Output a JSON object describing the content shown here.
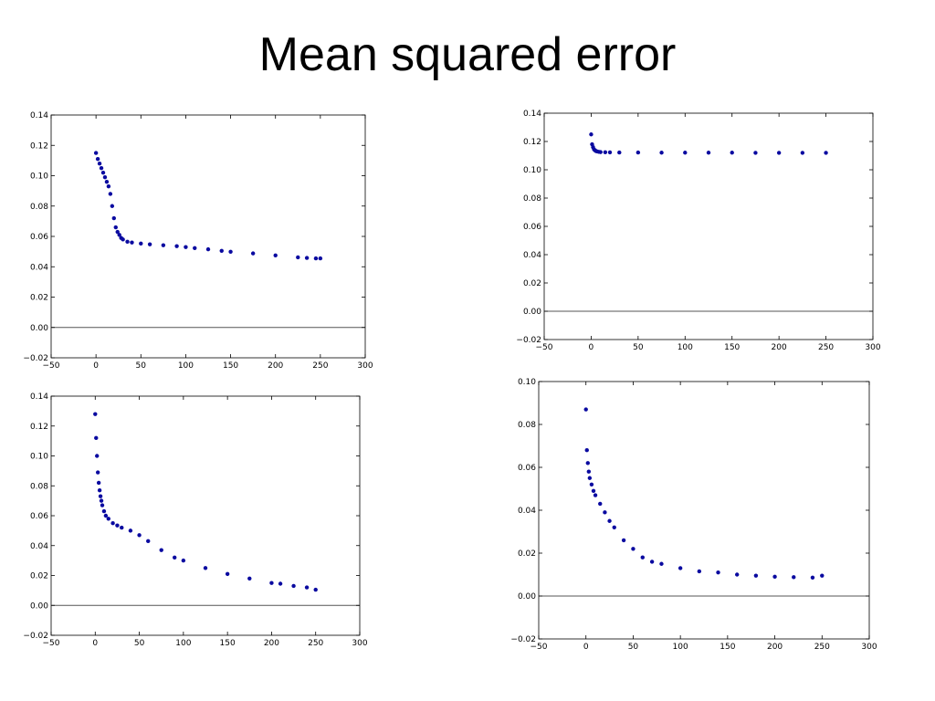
{
  "slide": {
    "title": "Mean squared error"
  },
  "colors": {
    "points": "#0a0aa0",
    "zero_line": "#555555",
    "frame": "#000000",
    "background": "#ffffff"
  },
  "chart_data": [
    {
      "type": "scatter",
      "title": "",
      "xlabel": "",
      "ylabel": "",
      "xlim": [
        -50,
        300
      ],
      "ylim": [
        -0.02,
        0.14
      ],
      "xticks": [
        -50,
        0,
        50,
        100,
        150,
        200,
        250,
        300
      ],
      "yticks": [
        -0.02,
        0.0,
        0.02,
        0.04,
        0.06,
        0.08,
        0.1,
        0.12,
        0.14
      ],
      "xtick_labels": [
        "−50",
        "0",
        "50",
        "100",
        "150",
        "200",
        "250",
        "300"
      ],
      "ytick_labels": [
        "−0.02",
        "0.00",
        "0.02",
        "0.04",
        "0.06",
        "0.08",
        "0.10",
        "0.12",
        "0.14"
      ],
      "grid": false,
      "zero_line": true,
      "series": [
        {
          "x": [
            0,
            2,
            4,
            6,
            8,
            10,
            12,
            14,
            16,
            18,
            20,
            22,
            24,
            26,
            28,
            30,
            35,
            40,
            50,
            60,
            75,
            90,
            100,
            110,
            125,
            140,
            150,
            175,
            200,
            225,
            235,
            245,
            250
          ],
          "y": [
            0.115,
            0.111,
            0.108,
            0.105,
            0.102,
            0.099,
            0.096,
            0.093,
            0.088,
            0.08,
            0.072,
            0.066,
            0.063,
            0.061,
            0.059,
            0.058,
            0.0565,
            0.056,
            0.0553,
            0.0548,
            0.0542,
            0.0536,
            0.053,
            0.0523,
            0.0515,
            0.0505,
            0.0499,
            0.0488,
            0.0475,
            0.0462,
            0.0458,
            0.0455,
            0.0455
          ]
        }
      ]
    },
    {
      "type": "scatter",
      "title": "",
      "xlabel": "",
      "ylabel": "",
      "xlim": [
        -50,
        300
      ],
      "ylim": [
        -0.02,
        0.14
      ],
      "xticks": [
        -50,
        0,
        50,
        100,
        150,
        200,
        250,
        300
      ],
      "yticks": [
        -0.02,
        0.0,
        0.02,
        0.04,
        0.06,
        0.08,
        0.1,
        0.12,
        0.14
      ],
      "xtick_labels": [
        "−50",
        "0",
        "50",
        "100",
        "150",
        "200",
        "250",
        "300"
      ],
      "ytick_labels": [
        "−0.02",
        "0.00",
        "0.02",
        "0.04",
        "0.06",
        "0.08",
        "0.10",
        "0.12",
        "0.14"
      ],
      "grid": false,
      "zero_line": true,
      "series": [
        {
          "x": [
            0,
            1,
            2,
            3,
            4,
            5,
            6,
            8,
            10,
            15,
            20,
            30,
            50,
            75,
            100,
            125,
            150,
            175,
            200,
            225,
            250
          ],
          "y": [
            0.125,
            0.118,
            0.116,
            0.1145,
            0.1138,
            0.1133,
            0.113,
            0.1127,
            0.1125,
            0.1124,
            0.1123,
            0.1122,
            0.1122,
            0.1121,
            0.1121,
            0.1121,
            0.1121,
            0.112,
            0.112,
            0.112,
            0.112
          ]
        }
      ]
    },
    {
      "type": "scatter",
      "title": "",
      "xlabel": "",
      "ylabel": "",
      "xlim": [
        -50,
        300
      ],
      "ylim": [
        -0.02,
        0.14
      ],
      "xticks": [
        -50,
        0,
        50,
        100,
        150,
        200,
        250,
        300
      ],
      "yticks": [
        -0.02,
        0.0,
        0.02,
        0.04,
        0.06,
        0.08,
        0.1,
        0.12,
        0.14
      ],
      "xtick_labels": [
        "−50",
        "0",
        "50",
        "100",
        "150",
        "200",
        "250",
        "300"
      ],
      "ytick_labels": [
        "−0.02",
        "0.00",
        "0.02",
        "0.04",
        "0.06",
        "0.08",
        "0.10",
        "0.12",
        "0.14"
      ],
      "grid": false,
      "zero_line": true,
      "series": [
        {
          "x": [
            0,
            1,
            2,
            3,
            4,
            5,
            6,
            7,
            8,
            10,
            12,
            15,
            20,
            25,
            30,
            40,
            50,
            60,
            75,
            90,
            100,
            125,
            150,
            175,
            200,
            210,
            225,
            240,
            250
          ],
          "y": [
            0.128,
            0.112,
            0.1,
            0.089,
            0.082,
            0.077,
            0.073,
            0.07,
            0.067,
            0.063,
            0.06,
            0.058,
            0.055,
            0.0535,
            0.052,
            0.05,
            0.047,
            0.043,
            0.037,
            0.032,
            0.03,
            0.025,
            0.021,
            0.018,
            0.015,
            0.0145,
            0.013,
            0.012,
            0.0105
          ]
        }
      ]
    },
    {
      "type": "scatter",
      "title": "",
      "xlabel": "",
      "ylabel": "",
      "xlim": [
        -50,
        300
      ],
      "ylim": [
        -0.02,
        0.1
      ],
      "xticks": [
        -50,
        0,
        50,
        100,
        150,
        200,
        250,
        300
      ],
      "yticks": [
        -0.02,
        0.0,
        0.02,
        0.04,
        0.06,
        0.08,
        0.1
      ],
      "xtick_labels": [
        "−50",
        "0",
        "50",
        "100",
        "150",
        "200",
        "250",
        "300"
      ],
      "ytick_labels": [
        "−0.02",
        "0.00",
        "0.02",
        "0.04",
        "0.06",
        "0.08",
        "0.10"
      ],
      "grid": false,
      "zero_line": true,
      "series": [
        {
          "x": [
            0,
            1,
            2,
            3,
            4,
            6,
            8,
            10,
            15,
            20,
            25,
            30,
            40,
            50,
            60,
            70,
            80,
            100,
            120,
            140,
            160,
            180,
            200,
            220,
            240,
            250
          ],
          "y": [
            0.087,
            0.068,
            0.062,
            0.058,
            0.055,
            0.052,
            0.049,
            0.047,
            0.043,
            0.039,
            0.035,
            0.032,
            0.026,
            0.022,
            0.018,
            0.016,
            0.015,
            0.013,
            0.0115,
            0.011,
            0.01,
            0.0095,
            0.009,
            0.0088,
            0.0086,
            0.0095
          ]
        }
      ]
    }
  ]
}
